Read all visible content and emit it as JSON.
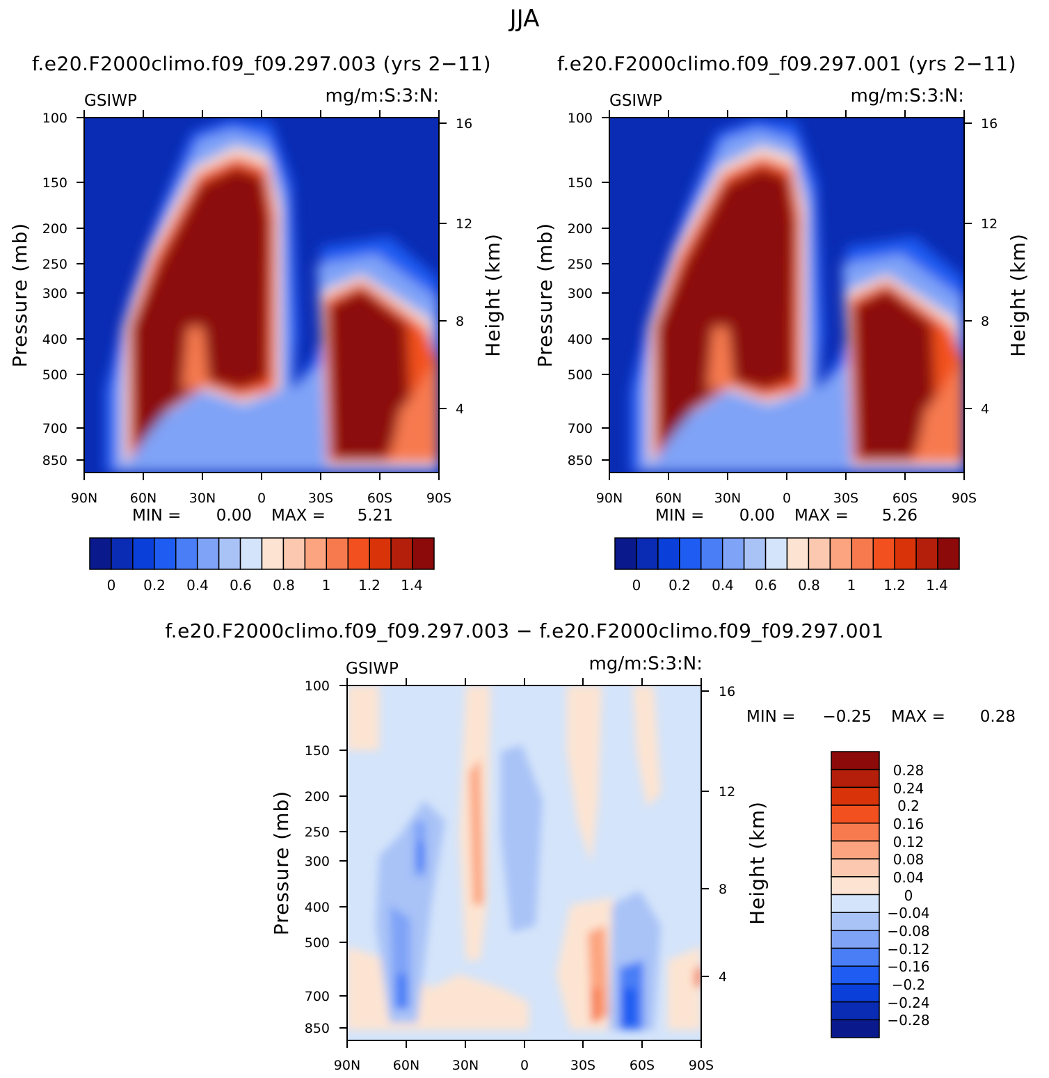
{
  "page": {
    "title": "JJA"
  },
  "colors": {
    "abs": [
      "#0a1a8c",
      "#0a2bb3",
      "#0a3fd9",
      "#1f5cf2",
      "#4a7ef7",
      "#7fa3f7",
      "#a9c3f7",
      "#d4e4fa",
      "#fde4d2",
      "#fcc9b0",
      "#fca47f",
      "#f77a4f",
      "#f2511f",
      "#d9330a",
      "#b31f0a",
      "#8c0a0a"
    ],
    "diff": [
      "#0a1a8c",
      "#0a2bb3",
      "#0a3fd9",
      "#1f5cf2",
      "#4a7ef7",
      "#7fa3f7",
      "#a9c3f7",
      "#d4e4fa",
      "#fde4d2",
      "#fcc9b0",
      "#fca47f",
      "#f77a4f",
      "#f2511f",
      "#d9330a",
      "#b31f0a",
      "#8c0a0a"
    ]
  },
  "chart_data": [
    {
      "type": "heatmap",
      "title": "f.e20.F2000climo.f09_f09.297.003 (yrs 2−11)",
      "left_label": "GSIWP",
      "right_label": "mg/m:S:3:N:",
      "xlabel": "",
      "ylabel": "Pressure (mb)",
      "ylabel_right": "Height (km)",
      "x_ticks": [
        "90N",
        "60N",
        "30N",
        "0",
        "30S",
        "60S",
        "90S"
      ],
      "y_ticks": [
        "100",
        "150",
        "200",
        "250",
        "300",
        "400",
        "500",
        "700",
        "850"
      ],
      "y_ticks_right": [
        "16",
        "12",
        "8",
        "4"
      ],
      "min_label": "MIN =",
      "min_value": "0.00",
      "max_label": "MAX =",
      "max_value": "5.21",
      "colorbar_labels": [
        "0",
        "0.2",
        "0.4",
        "0.6",
        "0.8",
        "1",
        "1.2",
        "1.4"
      ]
    },
    {
      "type": "heatmap",
      "title": "f.e20.F2000climo.f09_f09.297.001 (yrs 2−11)",
      "left_label": "GSIWP",
      "right_label": "mg/m:S:3:N:",
      "xlabel": "",
      "ylabel": "Pressure (mb)",
      "ylabel_right": "Height (km)",
      "x_ticks": [
        "90N",
        "60N",
        "30N",
        "0",
        "30S",
        "60S",
        "90S"
      ],
      "y_ticks": [
        "100",
        "150",
        "200",
        "250",
        "300",
        "400",
        "500",
        "700",
        "850"
      ],
      "y_ticks_right": [
        "16",
        "12",
        "8",
        "4"
      ],
      "min_label": "MIN =",
      "min_value": "0.00",
      "max_label": "MAX =",
      "max_value": "5.26",
      "colorbar_labels": [
        "0",
        "0.2",
        "0.4",
        "0.6",
        "0.8",
        "1",
        "1.2",
        "1.4"
      ]
    },
    {
      "type": "heatmap",
      "title": "f.e20.F2000climo.f09_f09.297.003 − f.e20.F2000climo.f09_f09.297.001",
      "left_label": "GSIWP",
      "right_label": "mg/m:S:3:N:",
      "xlabel": "",
      "ylabel": "Pressure (mb)",
      "ylabel_right": "Height (km)",
      "x_ticks": [
        "90N",
        "60N",
        "30N",
        "0",
        "30S",
        "60S",
        "90S"
      ],
      "y_ticks": [
        "100",
        "150",
        "200",
        "250",
        "300",
        "400",
        "500",
        "700",
        "850"
      ],
      "y_ticks_right": [
        "16",
        "12",
        "8",
        "4"
      ],
      "min_label": "MIN =",
      "min_value": "−0.25",
      "max_label": "MAX =",
      "max_value": "0.28",
      "colorbar_labels": [
        "0.28",
        "0.24",
        "0.2",
        "0.16",
        "0.12",
        "0.08",
        "0.04",
        "0",
        "−0.04",
        "−0.08",
        "−0.12",
        "−0.16",
        "−0.2",
        "−0.24",
        "−0.28"
      ]
    }
  ]
}
